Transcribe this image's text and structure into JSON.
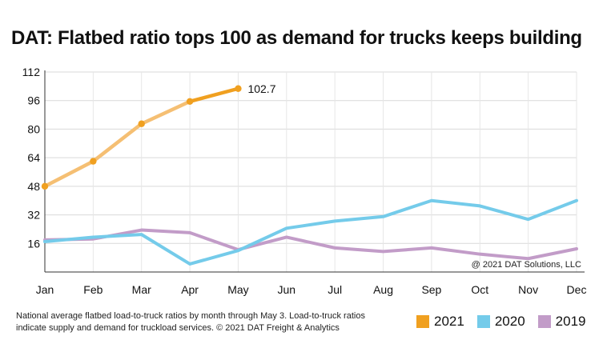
{
  "title": "DAT: Flatbed ratio tops 100 as demand for trucks keeps building",
  "footnote": "National average flatbed load-to-truck ratios by month through May 3. Load-to-truck ratios indicate supply and demand for truckload services. © 2021 DAT Freight & Analytics",
  "copyright": "@ 2021 DAT Solutions, LLC",
  "chart_data": {
    "type": "line",
    "title": "DAT: Flatbed ratio tops 100 as demand for trucks keeps building",
    "xlabel": "",
    "ylabel": "",
    "categories": [
      "Jan",
      "Feb",
      "Mar",
      "Apr",
      "May",
      "Jun",
      "Jul",
      "Aug",
      "Sep",
      "Oct",
      "Nov",
      "Dec"
    ],
    "ylim": [
      0,
      112
    ],
    "yticks": [
      16,
      32,
      48,
      64,
      80,
      96,
      112
    ],
    "grid": true,
    "legend_position": "bottom-right",
    "series": [
      {
        "name": "2021",
        "color": "#f0a020",
        "fade_color": "#f5bf73",
        "values": [
          48,
          62,
          83,
          95.5,
          102.7,
          null,
          null,
          null,
          null,
          null,
          null,
          null
        ],
        "data_label": "102.7"
      },
      {
        "name": "2020",
        "color": "#74cbea",
        "values": [
          17,
          19.5,
          21,
          4.5,
          12,
          24.5,
          28.5,
          31,
          40,
          37,
          29.5,
          40
        ]
      },
      {
        "name": "2019",
        "color": "#c29cc8",
        "values": [
          18,
          18.5,
          23.5,
          22,
          12.5,
          19.5,
          13.5,
          11.5,
          13.5,
          10,
          7.5,
          13
        ]
      }
    ]
  }
}
